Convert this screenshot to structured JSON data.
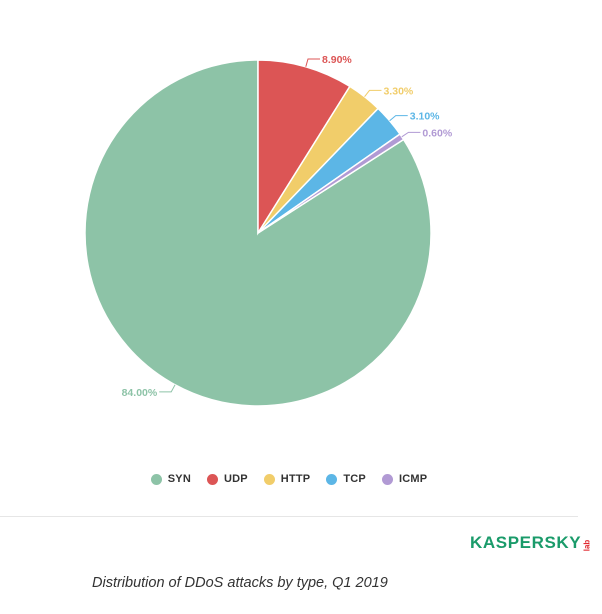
{
  "chart_data": {
    "type": "pie",
    "categories": [
      "SYN",
      "UDP",
      "HTTP",
      "TCP",
      "ICMP"
    ],
    "values": [
      84.0,
      8.9,
      3.3,
      3.1,
      0.6
    ],
    "labels": [
      "84.00%",
      "8.90%",
      "3.30%",
      "3.10%",
      "0.60%"
    ],
    "colors": [
      "#8dc3a7",
      "#dc5555",
      "#f1cd6a",
      "#5cb6e6",
      "#b19ad4"
    ],
    "legend_position": "bottom-center"
  },
  "brand": {
    "word": "KASPERSKY",
    "sub": "lab",
    "color": "#1a9b6a",
    "sub_color": "#e0282f"
  },
  "caption": "Distribution of DDoS attacks by type, Q1 2019"
}
